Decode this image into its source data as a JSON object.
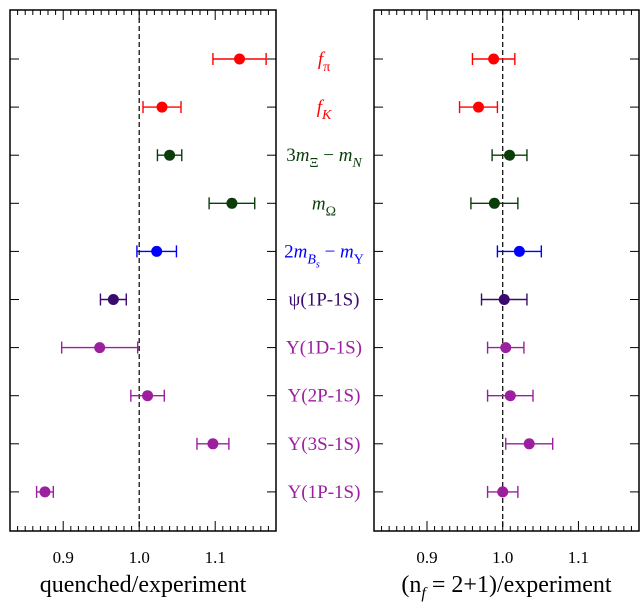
{
  "chart_data": [
    {
      "type": "scatter",
      "panel": "left",
      "xlabel": "quenched/experiment",
      "xlim": [
        0.83,
        1.18
      ],
      "xticks": [
        0.9,
        1.0,
        1.1
      ],
      "tick_labels": [
        "0.9",
        "1.0",
        "1.1"
      ],
      "reference_line": 1.0,
      "points": [
        {
          "label": "f_π",
          "value": 1.132,
          "err_low": 0.035,
          "err_high": 0.035,
          "color": "#ff0000"
        },
        {
          "label": "f_K",
          "value": 1.03,
          "err_low": 0.025,
          "err_high": 0.025,
          "color": "#ff0000"
        },
        {
          "label": "3m_Ξ − m_N",
          "value": 1.04,
          "err_low": 0.016,
          "err_high": 0.016,
          "color": "#0b3d0b"
        },
        {
          "label": "m_Ω",
          "value": 1.122,
          "err_low": 0.03,
          "err_high": 0.03,
          "color": "#0b3d0b"
        },
        {
          "label": "2m_Bs − m_Υ",
          "value": 1.023,
          "err_low": 0.026,
          "err_high": 0.026,
          "color": "#0000ff"
        },
        {
          "label": "ψ(1P-1S)",
          "value": 0.966,
          "err_low": 0.017,
          "err_high": 0.017,
          "color": "#3a0a6e"
        },
        {
          "label": "Υ(1D-1S)",
          "value": 0.948,
          "err_low": 0.05,
          "err_high": 0.05,
          "color": "#9c1fa0"
        },
        {
          "label": "Υ(2P-1S)",
          "value": 1.011,
          "err_low": 0.022,
          "err_high": 0.022,
          "color": "#9c1fa0"
        },
        {
          "label": "Υ(3S-1S)",
          "value": 1.097,
          "err_low": 0.021,
          "err_high": 0.021,
          "color": "#9c1fa0"
        },
        {
          "label": "Υ(1P-1S)",
          "value": 0.876,
          "err_low": 0.011,
          "err_high": 0.011,
          "color": "#9c1fa0"
        }
      ]
    },
    {
      "type": "scatter",
      "panel": "right",
      "xlabel_parts": [
        "(n",
        "f",
        " = 2+1)/experiment"
      ],
      "xlim": [
        0.83,
        1.18
      ],
      "xticks": [
        0.9,
        1.0,
        1.1
      ],
      "tick_labels": [
        "0.9",
        "1.0",
        "1.1"
      ],
      "reference_line": 1.0,
      "points": [
        {
          "label": "f_π",
          "value": 0.988,
          "err_low": 0.028,
          "err_high": 0.028,
          "color": "#ff0000"
        },
        {
          "label": "f_K",
          "value": 0.968,
          "err_low": 0.025,
          "err_high": 0.025,
          "color": "#ff0000"
        },
        {
          "label": "3m_Ξ − m_N",
          "value": 1.009,
          "err_low": 0.023,
          "err_high": 0.023,
          "color": "#0b3d0b"
        },
        {
          "label": "m_Ω",
          "value": 0.989,
          "err_low": 0.031,
          "err_high": 0.031,
          "color": "#0b3d0b"
        },
        {
          "label": "2m_Bs − m_Υ",
          "value": 1.022,
          "err_low": 0.029,
          "err_high": 0.029,
          "color": "#0000ff"
        },
        {
          "label": "ψ(1P-1S)",
          "value": 1.002,
          "err_low": 0.03,
          "err_high": 0.03,
          "color": "#3a0a6e"
        },
        {
          "label": "Υ(1D-1S)",
          "value": 1.004,
          "err_low": 0.024,
          "err_high": 0.024,
          "color": "#9c1fa0"
        },
        {
          "label": "Υ(2P-1S)",
          "value": 1.01,
          "err_low": 0.03,
          "err_high": 0.03,
          "color": "#9c1fa0"
        },
        {
          "label": "Υ(3S-1S)",
          "value": 1.035,
          "err_low": 0.031,
          "err_high": 0.031,
          "color": "#9c1fa0"
        },
        {
          "label": "Υ(1P-1S)",
          "value": 1.0,
          "err_low": 0.02,
          "err_high": 0.02,
          "color": "#9c1fa0"
        }
      ]
    }
  ],
  "row_labels": [
    {
      "parts": [
        {
          "t": "f",
          "i": true
        },
        {
          "t": "π",
          "s": "sub"
        }
      ],
      "color": "#ff0000"
    },
    {
      "parts": [
        {
          "t": "f",
          "i": true
        },
        {
          "t": "K",
          "s": "sub",
          "i": true
        }
      ],
      "color": "#ff0000"
    },
    {
      "parts": [
        {
          "t": "3"
        },
        {
          "t": "m",
          "i": true
        },
        {
          "t": "Ξ",
          "s": "sub"
        },
        {
          "t": " − "
        },
        {
          "t": "m",
          "i": true
        },
        {
          "t": "N",
          "s": "sub",
          "i": true
        }
      ],
      "color": "#0b3d0b"
    },
    {
      "parts": [
        {
          "t": "m",
          "i": true
        },
        {
          "t": "Ω",
          "s": "sub"
        }
      ],
      "color": "#0b3d0b"
    },
    {
      "parts": [
        {
          "t": "2"
        },
        {
          "t": "m",
          "i": true
        },
        {
          "t": "B",
          "s": "sub",
          "i": true
        },
        {
          "t": "s",
          "s": "subsub",
          "i": true
        },
        {
          "t": " − "
        },
        {
          "t": "m",
          "i": true
        },
        {
          "t": "Υ",
          "s": "sub"
        }
      ],
      "color": "#0000ff"
    },
    {
      "parts": [
        {
          "t": "ψ(1P-1S)"
        }
      ],
      "color": "#3a0a6e"
    },
    {
      "parts": [
        {
          "t": "Υ(1D-1S)"
        }
      ],
      "color": "#9c1fa0"
    },
    {
      "parts": [
        {
          "t": "Υ(2P-1S)"
        }
      ],
      "color": "#9c1fa0"
    },
    {
      "parts": [
        {
          "t": "Υ(3S-1S)"
        }
      ],
      "color": "#9c1fa0"
    },
    {
      "parts": [
        {
          "t": "Υ(1P-1S)"
        }
      ],
      "color": "#9c1fa0"
    }
  ]
}
